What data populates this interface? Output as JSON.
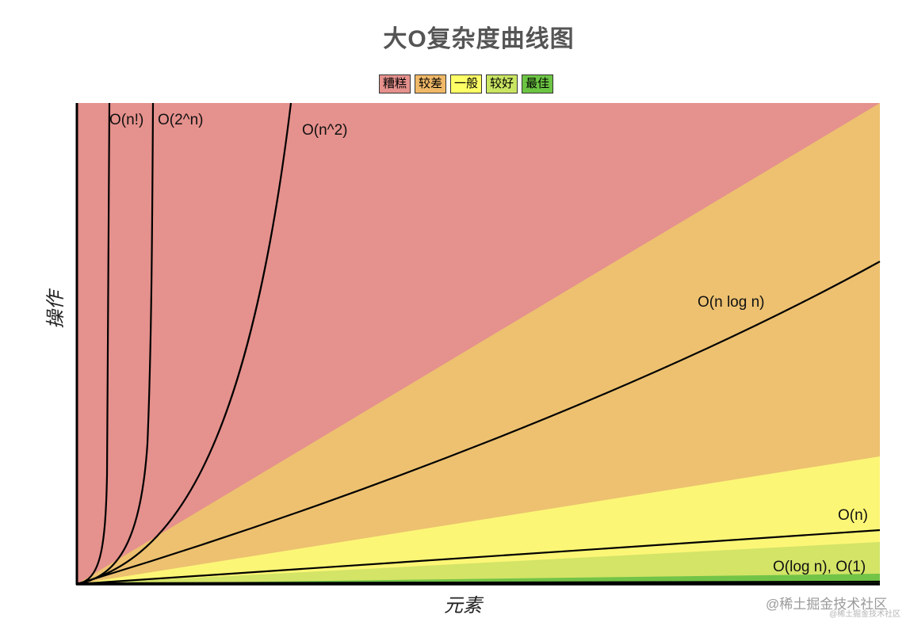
{
  "chart_data": {
    "type": "line",
    "title": "大O复杂度曲线图",
    "xlabel": "元素",
    "ylabel": "操作",
    "x_ticks": "none",
    "y_ticks": "none",
    "grid": false,
    "legend_placement": "top-center",
    "legend": [
      {
        "label": "糟糕",
        "color": "#e5918d"
      },
      {
        "label": "较差",
        "color": "#f0b968"
      },
      {
        "label": "一般",
        "color": "#ffff66"
      },
      {
        "label": "较好",
        "color": "#c9e562"
      },
      {
        "label": "最佳",
        "color": "#6cc443"
      }
    ],
    "region_colors": {
      "bad": "#e5918d",
      "poor": "#edc170",
      "fair": "#fcf676",
      "good": "#d3e467",
      "best": "#72c447"
    },
    "curves": [
      {
        "label": "O(n!)"
      },
      {
        "label": "O(2^n)"
      },
      {
        "label": "O(n^2)"
      },
      {
        "label": "O(n log n)"
      },
      {
        "label": "O(n)"
      },
      {
        "label": "O(log n), O(1)"
      }
    ]
  },
  "watermark": "@稀土掘金技术社区",
  "watermark_small": "@稀土掘金技术社区"
}
